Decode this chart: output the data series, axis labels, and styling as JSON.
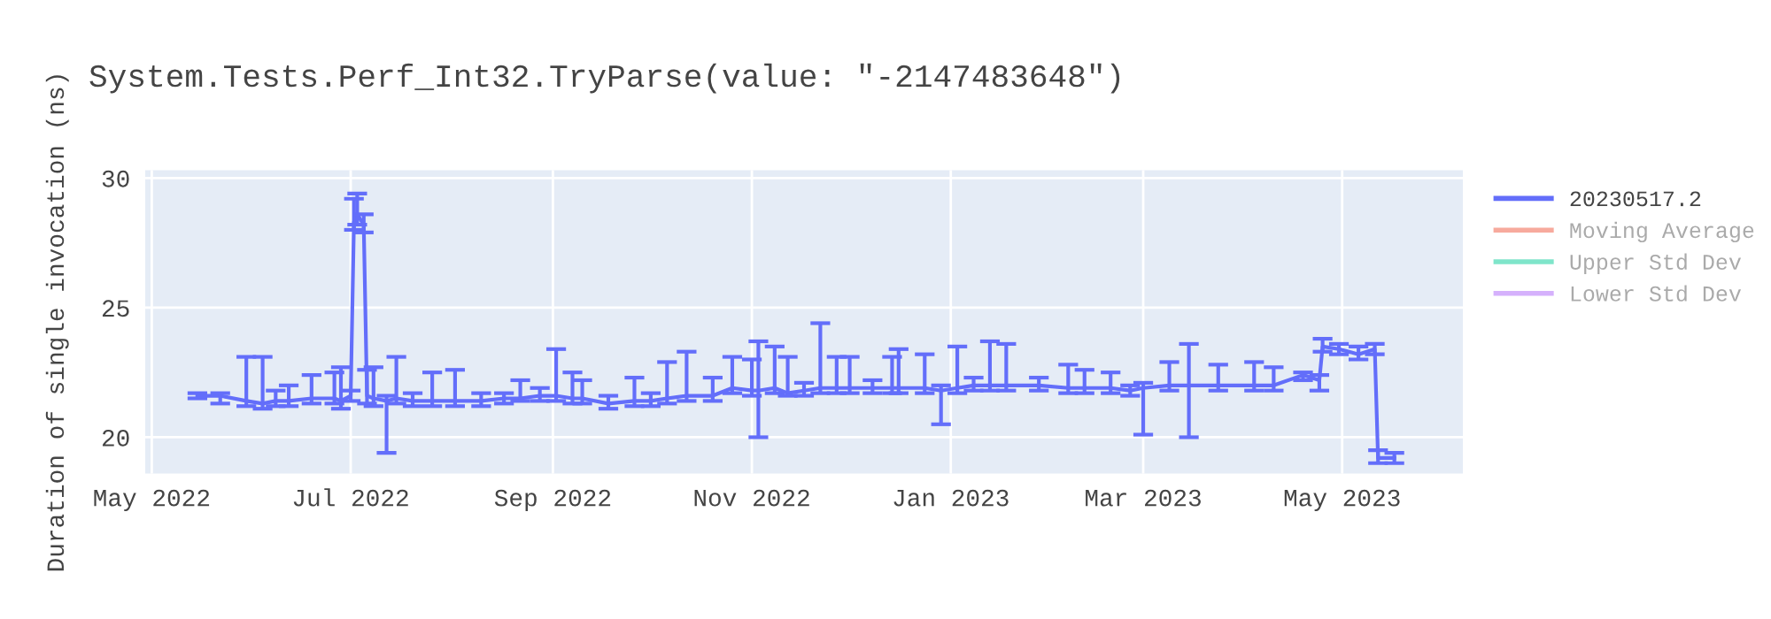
{
  "chart_data": {
    "type": "line",
    "title": "System.Tests.Perf_Int32.TryParse(value: \"-2147483648\")",
    "ylabel": "Duration of single invocation (ns)",
    "x": [
      "2022-05-15",
      "2022-05-22",
      "2022-05-30",
      "2022-06-04",
      "2022-06-08",
      "2022-06-12",
      "2022-06-19",
      "2022-06-26",
      "2022-06-28",
      "2022-07-01",
      "2022-07-02",
      "2022-07-03",
      "2022-07-05",
      "2022-07-06",
      "2022-07-08",
      "2022-07-12",
      "2022-07-15",
      "2022-07-20",
      "2022-07-26",
      "2022-08-02",
      "2022-08-10",
      "2022-08-17",
      "2022-08-22",
      "2022-08-28",
      "2022-09-02",
      "2022-09-07",
      "2022-09-10",
      "2022-09-18",
      "2022-09-26",
      "2022-10-01",
      "2022-10-06",
      "2022-10-12",
      "2022-10-20",
      "2022-10-26",
      "2022-11-01",
      "2022-11-03",
      "2022-11-08",
      "2022-11-12",
      "2022-11-17",
      "2022-11-22",
      "2022-11-27",
      "2022-12-01",
      "2022-12-08",
      "2022-12-14",
      "2022-12-16",
      "2022-12-24",
      "2022-12-29",
      "2023-01-03",
      "2023-01-08",
      "2023-01-13",
      "2023-01-18",
      "2023-01-28",
      "2023-02-06",
      "2023-02-11",
      "2023-02-19",
      "2023-02-25",
      "2023-03-01",
      "2023-03-09",
      "2023-03-15",
      "2023-03-24",
      "2023-04-04",
      "2023-04-10",
      "2023-04-19",
      "2023-04-24",
      "2023-04-25",
      "2023-04-30",
      "2023-05-06",
      "2023-05-11",
      "2023-05-12",
      "2023-05-17"
    ],
    "series": [
      {
        "name": "20230517.2",
        "color": "#636efa",
        "values": [
          21.6,
          21.6,
          21.4,
          21.3,
          21.4,
          21.4,
          21.5,
          21.5,
          21.4,
          21.6,
          28.3,
          28.6,
          28.2,
          21.6,
          21.5,
          21.4,
          21.5,
          21.4,
          21.4,
          21.4,
          21.4,
          21.5,
          21.5,
          21.6,
          21.6,
          21.5,
          21.5,
          21.3,
          21.4,
          21.4,
          21.5,
          21.6,
          21.6,
          21.9,
          21.8,
          21.8,
          21.9,
          21.7,
          21.8,
          21.9,
          21.9,
          21.9,
          21.9,
          21.9,
          21.9,
          21.9,
          21.8,
          21.9,
          22.0,
          22.0,
          22.0,
          22.0,
          21.9,
          21.9,
          21.9,
          21.8,
          21.9,
          22.0,
          22.0,
          22.0,
          22.0,
          22.0,
          22.4,
          22.2,
          23.5,
          23.4,
          23.2,
          23.4,
          19.2,
          19.2
        ],
        "errors": [
          [
            21.5,
            21.7
          ],
          [
            21.3,
            21.7
          ],
          [
            21.2,
            23.1
          ],
          [
            21.1,
            23.1
          ],
          [
            21.2,
            21.8
          ],
          [
            21.2,
            22.0
          ],
          [
            21.3,
            22.4
          ],
          [
            21.3,
            22.5
          ],
          [
            21.1,
            22.7
          ],
          [
            21.4,
            21.8
          ],
          [
            28.0,
            29.2
          ],
          [
            28.2,
            29.4
          ],
          [
            27.9,
            28.6
          ],
          [
            21.3,
            22.6
          ],
          [
            21.2,
            22.7
          ],
          [
            19.4,
            21.6
          ],
          [
            21.3,
            23.1
          ],
          [
            21.2,
            21.7
          ],
          [
            21.2,
            22.5
          ],
          [
            21.2,
            22.6
          ],
          [
            21.2,
            21.7
          ],
          [
            21.3,
            21.7
          ],
          [
            21.4,
            22.2
          ],
          [
            21.4,
            21.9
          ],
          [
            21.4,
            23.4
          ],
          [
            21.3,
            22.5
          ],
          [
            21.3,
            22.2
          ],
          [
            21.1,
            21.6
          ],
          [
            21.2,
            22.3
          ],
          [
            21.2,
            21.7
          ],
          [
            21.3,
            22.9
          ],
          [
            21.4,
            23.3
          ],
          [
            21.4,
            22.3
          ],
          [
            21.7,
            23.1
          ],
          [
            21.6,
            23.0
          ],
          [
            20.0,
            23.7
          ],
          [
            21.7,
            23.5
          ],
          [
            21.6,
            23.1
          ],
          [
            21.6,
            22.1
          ],
          [
            21.7,
            24.4
          ],
          [
            21.7,
            23.1
          ],
          [
            21.7,
            23.1
          ],
          [
            21.7,
            22.2
          ],
          [
            21.7,
            23.1
          ],
          [
            21.7,
            23.4
          ],
          [
            21.7,
            23.2
          ],
          [
            20.5,
            22.0
          ],
          [
            21.7,
            23.5
          ],
          [
            21.8,
            22.3
          ],
          [
            21.8,
            23.7
          ],
          [
            21.8,
            23.6
          ],
          [
            21.8,
            22.3
          ],
          [
            21.7,
            22.8
          ],
          [
            21.7,
            22.6
          ],
          [
            21.7,
            22.5
          ],
          [
            21.6,
            22.0
          ],
          [
            20.1,
            22.1
          ],
          [
            21.8,
            22.9
          ],
          [
            20.0,
            23.6
          ],
          [
            21.8,
            22.8
          ],
          [
            21.8,
            22.9
          ],
          [
            21.8,
            22.7
          ],
          [
            22.2,
            22.5
          ],
          [
            21.8,
            22.4
          ],
          [
            23.3,
            23.8
          ],
          [
            23.2,
            23.6
          ],
          [
            23.0,
            23.5
          ],
          [
            23.2,
            23.6
          ],
          [
            19.0,
            19.5
          ],
          [
            19.0,
            19.4
          ]
        ]
      },
      {
        "name": "Moving Average",
        "color": "#ef553b",
        "values": [
          null,
          null,
          null,
          null,
          null,
          null,
          null,
          null,
          null,
          null,
          null,
          null,
          null,
          null,
          null,
          null,
          null,
          null,
          null,
          null,
          null,
          null,
          null,
          null,
          null,
          null,
          null,
          null,
          null,
          null,
          null,
          null,
          null,
          null,
          null,
          null,
          null,
          null,
          null,
          null,
          null,
          null,
          null,
          null,
          null,
          null,
          null,
          null,
          null,
          null,
          null,
          null,
          null,
          null,
          null,
          null,
          null,
          null,
          null,
          null,
          null,
          null,
          null,
          null,
          null,
          null,
          null,
          null,
          null,
          null
        ]
      },
      {
        "name": "Upper Std Dev",
        "color": "#00cc96",
        "values": [
          null,
          null,
          null,
          null,
          null,
          null,
          null,
          null,
          null,
          null,
          null,
          null,
          null,
          null,
          null,
          null,
          null,
          null,
          null,
          null,
          null,
          null,
          null,
          null,
          null,
          null,
          null,
          null,
          null,
          null,
          null,
          null,
          null,
          null,
          null,
          null,
          null,
          null,
          null,
          null,
          null,
          null,
          null,
          null,
          null,
          null,
          null,
          null,
          null,
          null,
          null,
          null,
          null,
          null,
          null,
          null,
          null,
          null,
          null,
          null,
          null,
          null,
          null,
          null,
          null,
          null,
          null,
          null,
          null,
          null
        ]
      },
      {
        "name": "Lower Std Dev",
        "color": "#ab63fa",
        "values": [
          null,
          null,
          null,
          null,
          null,
          null,
          null,
          null,
          null,
          null,
          null,
          null,
          null,
          null,
          null,
          null,
          null,
          null,
          null,
          null,
          null,
          null,
          null,
          null,
          null,
          null,
          null,
          null,
          null,
          null,
          null,
          null,
          null,
          null,
          null,
          null,
          null,
          null,
          null,
          null,
          null,
          null,
          null,
          null,
          null,
          null,
          null,
          null,
          null,
          null,
          null,
          null,
          null,
          null,
          null,
          null,
          null,
          null,
          null,
          null,
          null,
          null,
          null,
          null,
          null,
          null,
          null,
          null,
          null,
          null
        ]
      }
    ],
    "xlim": [
      "2022-04-29",
      "2023-06-07"
    ],
    "xticks": [
      {
        "value": "2022-05-01",
        "label": "May 2022"
      },
      {
        "value": "2022-07-01",
        "label": "Jul 2022"
      },
      {
        "value": "2022-09-01",
        "label": "Sep 2022"
      },
      {
        "value": "2022-11-01",
        "label": "Nov 2022"
      },
      {
        "value": "2023-01-01",
        "label": "Jan 2023"
      },
      {
        "value": "2023-03-01",
        "label": "Mar 2023"
      },
      {
        "value": "2023-05-01",
        "label": "May 2023"
      }
    ],
    "ylim": [
      18.6,
      30.3
    ],
    "yticks": [
      20,
      25,
      30
    ],
    "grid": true,
    "legend": "right",
    "marker": "none",
    "line_style": "solid"
  }
}
